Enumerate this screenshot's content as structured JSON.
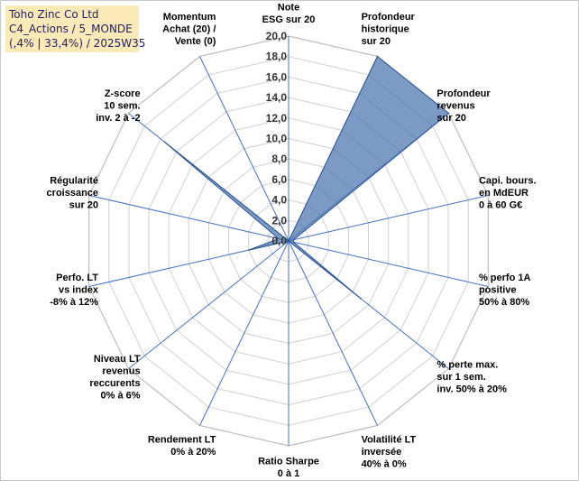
{
  "title_box": {
    "line1": "Toho Zinc Co Ltd",
    "line2": "C4_Actions / 5_MONDE",
    "line3": "(,4% | 33,4%) / 2025W35"
  },
  "chart_data": {
    "type": "radar",
    "rmin": 0,
    "rmax": 20,
    "tick_step": 2,
    "tick_labels": [
      "0,0",
      "2,0",
      "4,0",
      "6,0",
      "8,0",
      "10,0",
      "12,0",
      "14,0",
      "16,0",
      "18,0",
      "20,0"
    ],
    "fill_color": "#4f79b0",
    "fill_opacity": 0.75,
    "stroke_color": "#2f5597",
    "spoke_color": "#4472c4",
    "grid_color": "#d0d0d0",
    "axes": [
      {
        "label": [
          "Note",
          "ESG sur 20"
        ],
        "value": 0
      },
      {
        "label": [
          "Profondeur",
          "historique",
          "sur 20"
        ],
        "value": 20
      },
      {
        "label": [
          "Profondeur",
          "revenus",
          "sur 20"
        ],
        "value": 20
      },
      {
        "label": [
          "Capi. bours.",
          "en MdEUR",
          "0 à 60 G€"
        ],
        "value": 0.5
      },
      {
        "label": [
          "% perfo 1A",
          "positive",
          "50% à 80%"
        ],
        "value": 0.5
      },
      {
        "label": [
          "% perte max.",
          "sur 1 sem.",
          "inv. 50% à 20%"
        ],
        "value": 9
      },
      {
        "label": [
          "Volatilité LT",
          "inversée",
          "40% à 0%"
        ],
        "value": 0
      },
      {
        "label": [
          "Ratio Sharpe",
          "0 à 1"
        ],
        "value": 0
      },
      {
        "label": [
          "Rendement LT",
          "0% à 20%"
        ],
        "value": 0
      },
      {
        "label": [
          "Niveau LT",
          "revenus",
          "reccurents",
          "0% à 6%"
        ],
        "value": 0
      },
      {
        "label": [
          "Perfo. LT",
          "vs index",
          "-8% à 12%"
        ],
        "value": 4
      },
      {
        "label": [
          "Régularité",
          "croissance",
          "sur 20"
        ],
        "value": 1
      },
      {
        "label": [
          "Z-score",
          "10 sem.",
          "inv. 2 à -2"
        ],
        "value": 15.5
      },
      {
        "label": [
          "Momentum",
          "Achat (20) /",
          "Vente (0)"
        ],
        "value": 0
      }
    ]
  }
}
